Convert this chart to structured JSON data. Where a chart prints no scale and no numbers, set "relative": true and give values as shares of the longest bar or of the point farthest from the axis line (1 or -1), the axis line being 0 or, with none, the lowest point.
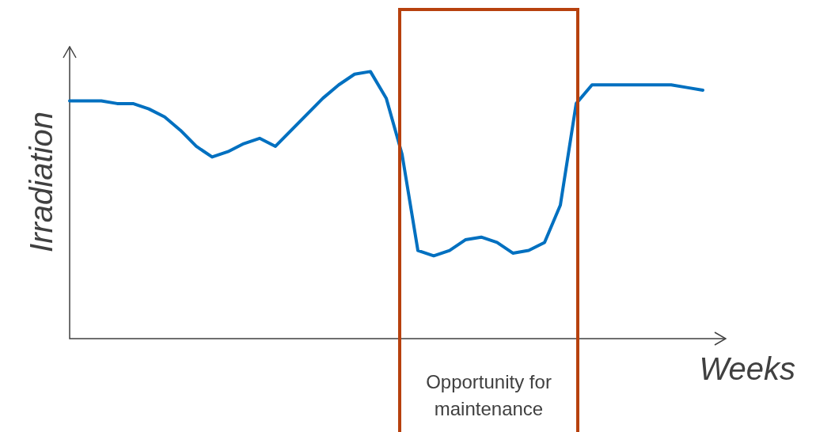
{
  "chart_data": {
    "type": "line",
    "relative": true,
    "xlabel": "Weeks",
    "ylabel": "Irradiation",
    "tick_labels": false,
    "legend": false,
    "marker": "none",
    "line_style": "solid",
    "categories": [
      null,
      null,
      null,
      null,
      null,
      null,
      null,
      null,
      null,
      null,
      null,
      null,
      null,
      null,
      null,
      null,
      null,
      null,
      null,
      null,
      null,
      null,
      null,
      null,
      null,
      null,
      null,
      null,
      null,
      null,
      null,
      null,
      null,
      null,
      null,
      null,
      null,
      null,
      null,
      null,
      null
    ],
    "series": [
      {
        "color": "#0070c0",
        "values": [
          0.89,
          0.89,
          0.89,
          0.88,
          0.88,
          0.86,
          0.83,
          0.78,
          0.72,
          0.68,
          0.7,
          0.73,
          0.75,
          0.72,
          0.78,
          0.84,
          0.9,
          0.95,
          0.99,
          1.0,
          0.9,
          0.69,
          0.33,
          0.31,
          0.33,
          0.37,
          0.38,
          0.36,
          0.32,
          0.33,
          0.36,
          0.5,
          0.88,
          0.95,
          0.95,
          0.95,
          0.95,
          0.95,
          0.95,
          0.94,
          0.93
        ]
      }
    ],
    "annotations": [
      "Opportunity for maintenance"
    ]
  }
}
